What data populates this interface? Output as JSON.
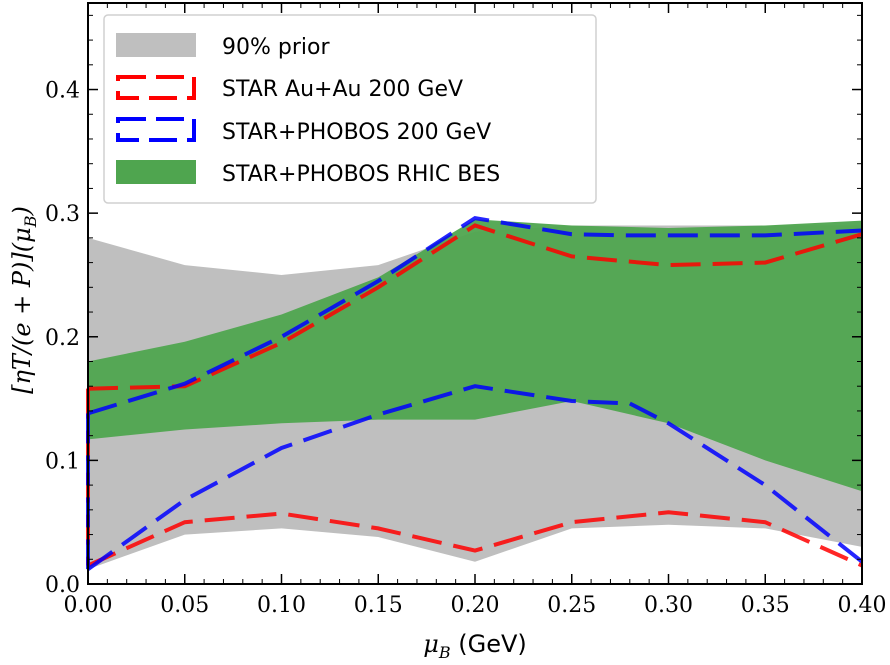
{
  "chart_data": {
    "type": "area",
    "xlabel": "μ_B (GeV)",
    "xlabel_main": "μ",
    "xlabel_sub": "B",
    "xlabel_unit": " (GeV)",
    "ylabel": "[ηT/(e+P)](μ_B)",
    "xlim": [
      0.0,
      0.4
    ],
    "ylim": [
      0.0,
      0.47
    ],
    "xticks": [
      "0.00",
      "0.05",
      "0.10",
      "0.15",
      "0.20",
      "0.25",
      "0.30",
      "0.35",
      "0.40"
    ],
    "yticks": [
      "0.0",
      "0.1",
      "0.2",
      "0.3",
      "0.4"
    ],
    "legend_position": "top-left",
    "legend": [
      {
        "label": "90% prior",
        "style": "fill",
        "color": "#bfbfbf"
      },
      {
        "label": "STAR Au+Au 200 GeV",
        "style": "dashed-box",
        "color": "#ff0000"
      },
      {
        "label": "STAR+PHOBOS 200 GeV",
        "style": "dashed-box",
        "color": "#0000ff"
      },
      {
        "label": "STAR+PHOBOS RHIC BES",
        "style": "fill",
        "color": "#4fa54f"
      }
    ],
    "bands": [
      {
        "name": "90% prior",
        "color": "#bfbfbf",
        "x": [
          0.0,
          0.05,
          0.1,
          0.15,
          0.2,
          0.25,
          0.3,
          0.35,
          0.4
        ],
        "upper": [
          0.28,
          0.258,
          0.25,
          0.258,
          0.285,
          0.29,
          0.29,
          0.29,
          0.29
        ],
        "lower": [
          0.012,
          0.04,
          0.045,
          0.038,
          0.018,
          0.045,
          0.048,
          0.045,
          0.03
        ]
      },
      {
        "name": "STAR+PHOBOS RHIC BES",
        "color": "#4fa54f",
        "x": [
          0.0,
          0.05,
          0.1,
          0.15,
          0.2,
          0.25,
          0.3,
          0.35,
          0.4
        ],
        "upper": [
          0.18,
          0.196,
          0.218,
          0.248,
          0.295,
          0.29,
          0.288,
          0.29,
          0.294
        ],
        "lower": [
          0.117,
          0.125,
          0.13,
          0.133,
          0.133,
          0.148,
          0.13,
          0.1,
          0.075
        ]
      },
      {
        "name": "STAR Au+Au 200 GeV",
        "color": "#ff0000",
        "x": [
          0.0,
          0.05,
          0.1,
          0.15,
          0.2,
          0.25,
          0.3,
          0.35,
          0.4
        ],
        "upper": [
          0.158,
          0.16,
          0.195,
          0.24,
          0.29,
          0.265,
          0.258,
          0.26,
          0.283
        ],
        "lower": [
          0.015,
          0.05,
          0.057,
          0.045,
          0.027,
          0.05,
          0.058,
          0.05,
          0.015
        ]
      },
      {
        "name": "STAR+PHOBOS 200 GeV",
        "color": "#0000ff",
        "x": [
          0.0,
          0.05,
          0.1,
          0.15,
          0.2,
          0.25,
          0.28,
          0.3,
          0.35,
          0.4
        ],
        "upper": [
          0.138,
          0.162,
          0.2,
          0.245,
          0.296,
          0.283,
          0.282,
          0.282,
          0.282,
          0.286
        ],
        "lower": [
          0.012,
          0.068,
          0.11,
          0.137,
          0.16,
          0.148,
          0.146,
          0.13,
          0.08,
          0.018
        ]
      }
    ]
  }
}
